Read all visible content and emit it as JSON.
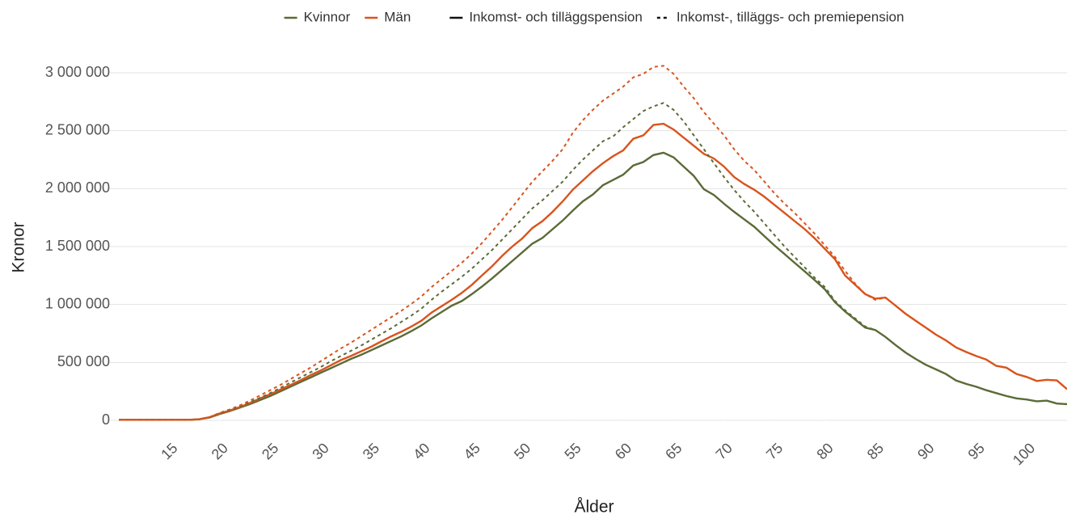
{
  "chart_data": {
    "type": "line",
    "x_label": "Ålder",
    "y_label": "Kronor",
    "x": [
      10,
      11,
      12,
      13,
      14,
      15,
      16,
      17,
      18,
      19,
      20,
      21,
      22,
      23,
      24,
      25,
      26,
      27,
      28,
      29,
      30,
      31,
      32,
      33,
      34,
      35,
      36,
      37,
      38,
      39,
      40,
      41,
      42,
      43,
      44,
      45,
      46,
      47,
      48,
      49,
      50,
      51,
      52,
      53,
      54,
      55,
      56,
      57,
      58,
      59,
      60,
      61,
      62,
      63,
      64,
      65,
      66,
      67,
      68,
      69,
      70,
      71,
      72,
      73,
      74,
      75,
      76,
      77,
      78,
      79,
      80,
      81,
      82,
      83,
      84,
      85,
      86,
      87,
      88,
      89,
      90,
      91,
      92,
      93,
      94,
      95,
      96,
      97,
      98,
      99,
      100,
      101,
      102,
      103,
      104
    ],
    "xlim": [
      10,
      104
    ],
    "xticks": [
      15,
      20,
      25,
      30,
      35,
      40,
      45,
      50,
      55,
      60,
      65,
      70,
      75,
      80,
      85,
      90,
      95,
      100
    ],
    "ylim": [
      0,
      3100000
    ],
    "yticks": [
      0,
      {
        "value": 500000,
        "label": "500 000"
      },
      {
        "value": 1000000,
        "label": "1 000 000"
      },
      {
        "value": 1500000,
        "label": "1 500 000"
      },
      {
        "value": 2000000,
        "label": "2 000 000"
      },
      {
        "value": 2500000,
        "label": "2 500 000"
      },
      {
        "value": 3000000,
        "label": "3 000 000"
      }
    ],
    "grid": true,
    "line_styles": [
      {
        "name": "Inkomst- och tilläggspension",
        "dashed": false
      },
      {
        "name": "Inkomst-, tilläggs- och premiepension",
        "dashed": true
      }
    ],
    "series": [
      {
        "name": "Kvinnor",
        "color": "#5b6b37",
        "dashed": false,
        "values": [
          5000,
          5000,
          5000,
          5000,
          5000,
          5000,
          5000,
          5000,
          10000,
          25000,
          55000,
          80000,
          110000,
          140000,
          175000,
          210000,
          250000,
          290000,
          330000,
          370000,
          410000,
          450000,
          490000,
          530000,
          565000,
          605000,
          645000,
          685000,
          725000,
          770000,
          820000,
          880000,
          935000,
          990000,
          1030000,
          1090000,
          1155000,
          1225000,
          1300000,
          1375000,
          1450000,
          1525000,
          1575000,
          1650000,
          1725000,
          1810000,
          1890000,
          1950000,
          2030000,
          2075000,
          2120000,
          2200000,
          2230000,
          2290000,
          2310000,
          2270000,
          2190000,
          2110000,
          1995000,
          1945000,
          1870000,
          1800000,
          1735000,
          1670000,
          1590000,
          1510000,
          1435000,
          1360000,
          1285000,
          1210000,
          1130000,
          1020000,
          940000,
          870000,
          800000,
          780000,
          720000,
          650000,
          585000,
          530000,
          480000,
          440000,
          400000,
          345000,
          315000,
          290000,
          260000,
          235000,
          210000,
          190000,
          180000,
          165000,
          170000,
          145000,
          140000
        ]
      },
      {
        "name": "Män",
        "color": "#d8541d",
        "dashed": false,
        "values": [
          5000,
          5000,
          5000,
          5000,
          5000,
          5000,
          5000,
          5000,
          10000,
          28000,
          60000,
          85000,
          115000,
          150000,
          190000,
          225000,
          265000,
          305000,
          345000,
          390000,
          430000,
          475000,
          520000,
          555000,
          595000,
          635000,
          680000,
          725000,
          765000,
          810000,
          860000,
          930000,
          985000,
          1040000,
          1100000,
          1170000,
          1250000,
          1330000,
          1420000,
          1500000,
          1570000,
          1660000,
          1720000,
          1800000,
          1890000,
          1990000,
          2070000,
          2150000,
          2220000,
          2280000,
          2330000,
          2430000,
          2460000,
          2550000,
          2560000,
          2510000,
          2440000,
          2370000,
          2300000,
          2260000,
          2190000,
          2100000,
          2040000,
          1990000,
          1930000,
          1860000,
          1790000,
          1720000,
          1650000,
          1570000,
          1480000,
          1390000,
          1250000,
          1170000,
          1090000,
          1050000,
          1060000,
          990000,
          920000,
          860000,
          800000,
          740000,
          690000,
          630000,
          590000,
          555000,
          525000,
          470000,
          455000,
          400000,
          375000,
          340000,
          350000,
          345000,
          270000
        ]
      },
      {
        "name": "Kvinnor",
        "color": "#5b6b37",
        "dashed": true,
        "values": [
          5000,
          5000,
          5000,
          5000,
          5000,
          5000,
          5000,
          5000,
          10000,
          25000,
          60000,
          90000,
          120000,
          155000,
          195000,
          235000,
          280000,
          325000,
          370000,
          415000,
          460000,
          510000,
          555000,
          600000,
          645000,
          695000,
          745000,
          795000,
          850000,
          905000,
          965000,
          1040000,
          1110000,
          1175000,
          1240000,
          1310000,
          1390000,
          1470000,
          1560000,
          1650000,
          1740000,
          1830000,
          1900000,
          1980000,
          2060000,
          2160000,
          2250000,
          2330000,
          2410000,
          2450000,
          2530000,
          2600000,
          2670000,
          2710000,
          2740000,
          2680000,
          2580000,
          2460000,
          2340000,
          2220000,
          2100000,
          1990000,
          1890000,
          1800000,
          1700000,
          1600000,
          1500000,
          1410000,
          1320000,
          1230000,
          1150000,
          1030000,
          950000,
          880000,
          810000,
          780000,
          720000,
          650000,
          585000,
          530000,
          480000,
          440000,
          400000,
          345000,
          315000,
          290000,
          260000,
          235000,
          210000,
          190000,
          180000,
          165000,
          170000,
          145000,
          140000
        ]
      },
      {
        "name": "Män",
        "color": "#d8541d",
        "dashed": true,
        "values": [
          5000,
          5000,
          5000,
          5000,
          5000,
          5000,
          5000,
          5000,
          10000,
          28000,
          65000,
          95000,
          130000,
          170000,
          215000,
          260000,
          305000,
          355000,
          405000,
          455000,
          510000,
          565000,
          620000,
          670000,
          725000,
          780000,
          835000,
          890000,
          945000,
          1005000,
          1070000,
          1150000,
          1220000,
          1290000,
          1360000,
          1440000,
          1530000,
          1630000,
          1730000,
          1840000,
          1950000,
          2060000,
          2150000,
          2240000,
          2340000,
          2480000,
          2590000,
          2680000,
          2760000,
          2820000,
          2880000,
          2960000,
          2990000,
          3050000,
          3060000,
          2990000,
          2880000,
          2780000,
          2660000,
          2560000,
          2460000,
          2340000,
          2240000,
          2160000,
          2060000,
          1960000,
          1870000,
          1790000,
          1700000,
          1610000,
          1510000,
          1410000,
          1290000,
          1180000,
          1090000,
          1040000,
          1060000,
          990000,
          920000,
          860000,
          800000,
          740000,
          690000,
          630000,
          590000,
          555000,
          525000,
          470000,
          455000,
          400000,
          375000,
          340000,
          350000,
          345000,
          270000
        ]
      }
    ]
  }
}
